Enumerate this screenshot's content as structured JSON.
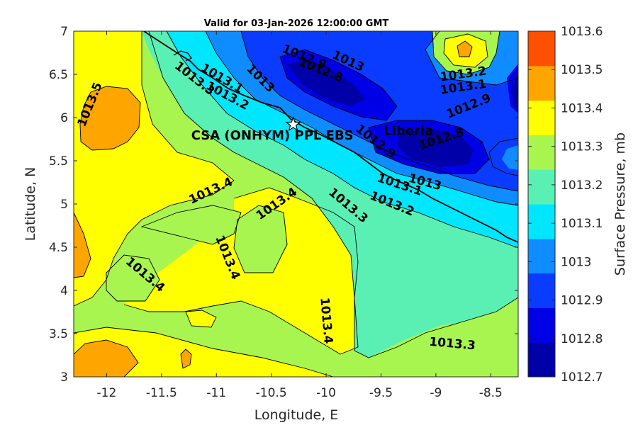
{
  "chart_data": {
    "type": "contour",
    "title": "Valid for 03-Jan-2026 12:00:00 GMT",
    "xlabel": "Longitude, E",
    "ylabel": "Latitude, N",
    "xlim": [
      -12.3,
      -8.25
    ],
    "ylim": [
      3,
      7
    ],
    "xticks": [
      -12,
      -11.5,
      -11,
      -10.5,
      -10,
      -9.5,
      -9,
      -8.5
    ],
    "yticks": [
      3,
      3.5,
      4,
      4.5,
      5,
      5.5,
      6,
      6.5,
      7
    ],
    "colorbar": {
      "label": "Surface Pressure, mb",
      "levels": [
        1012.7,
        1012.8,
        1012.9,
        1013,
        1013.1,
        1013.2,
        1013.3,
        1013.4,
        1013.5,
        1013.6
      ],
      "tick_labels": [
        "1012.7",
        "1012.8",
        "1012.9",
        "1013",
        "1013.1",
        "1013.2",
        "1013.3",
        "1013.4",
        "1013.5",
        "1013.6"
      ],
      "colors": [
        "#0000a8",
        "#0000e6",
        "#0a3cff",
        "#0f8cff",
        "#00e6ff",
        "#5af0b4",
        "#a8f550",
        "#ffff00",
        "#ffa500",
        "#ff5000"
      ]
    },
    "contour_labels": [
      {
        "text": "1013.5",
        "lon": -12.15,
        "lat": 6.15,
        "angle": -68
      },
      {
        "text": "1012.9",
        "lon": -10.2,
        "lat": 6.7,
        "angle": 22
      },
      {
        "text": "1012.8",
        "lon": -10.05,
        "lat": 6.55,
        "angle": 22
      },
      {
        "text": "1013",
        "lon": -9.8,
        "lat": 6.65,
        "angle": 25
      },
      {
        "text": "1013.3",
        "lon": -11.2,
        "lat": 6.45,
        "angle": 38
      },
      {
        "text": "1013.1",
        "lon": -10.95,
        "lat": 6.45,
        "angle": 30
      },
      {
        "text": "1013.2",
        "lon": -10.9,
        "lat": 6.25,
        "angle": 28
      },
      {
        "text": "1013",
        "lon": -10.6,
        "lat": 6.45,
        "angle": 45
      },
      {
        "text": "1013.2",
        "lon": -8.75,
        "lat": 6.5,
        "angle": -8
      },
      {
        "text": "1013.1",
        "lon": -8.75,
        "lat": 6.35,
        "angle": -8
      },
      {
        "text": "1012.9",
        "lon": -8.7,
        "lat": 6.13,
        "angle": -22
      },
      {
        "text": "1012.9",
        "lon": -9.55,
        "lat": 5.72,
        "angle": 38
      },
      {
        "text": "1012.8",
        "lon": -8.95,
        "lat": 5.75,
        "angle": -18
      },
      {
        "text": "1013",
        "lon": -9.1,
        "lat": 5.25,
        "angle": 15
      },
      {
        "text": "1013.1",
        "lon": -9.33,
        "lat": 5.22,
        "angle": 18
      },
      {
        "text": "1013.2",
        "lon": -9.4,
        "lat": 5.0,
        "angle": 22
      },
      {
        "text": "1013.3",
        "lon": -9.8,
        "lat": 4.98,
        "angle": 40
      },
      {
        "text": "1013.4",
        "lon": -11.05,
        "lat": 5.15,
        "angle": -25
      },
      {
        "text": "1013.4",
        "lon": -10.45,
        "lat": 5.0,
        "angle": -35
      },
      {
        "text": "1013.4",
        "lon": -10.9,
        "lat": 4.38,
        "angle": 68
      },
      {
        "text": "1013.4",
        "lon": -11.65,
        "lat": 4.18,
        "angle": 40
      },
      {
        "text": "1013.4",
        "lon": -10.0,
        "lat": 3.65,
        "angle": 85
      },
      {
        "text": "1013.3",
        "lon": -8.85,
        "lat": 3.38,
        "angle": 5
      }
    ],
    "places": [
      {
        "name": "CSA (ONHYM) PPL EBS",
        "lon": -10.3,
        "lat": 5.92,
        "marker": "star"
      },
      {
        "name": "Liberia",
        "lon": -9.25,
        "lat": 5.8,
        "marker": "none"
      }
    ]
  }
}
